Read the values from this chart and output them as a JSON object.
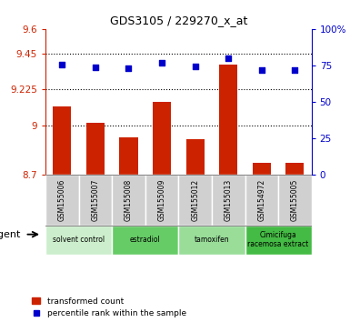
{
  "title": "GDS3105 / 229270_x_at",
  "samples": [
    "GSM155006",
    "GSM155007",
    "GSM155008",
    "GSM155009",
    "GSM155012",
    "GSM155013",
    "GSM154972",
    "GSM155005"
  ],
  "bar_values": [
    9.12,
    9.02,
    8.93,
    9.15,
    8.92,
    9.38,
    8.77,
    8.77
  ],
  "percentile_values": [
    75.5,
    73.5,
    73.0,
    76.5,
    74.0,
    80.0,
    71.5,
    72.0
  ],
  "bar_color": "#cc2200",
  "dot_color": "#0000cc",
  "ylim_left": [
    8.7,
    9.6
  ],
  "ylim_right": [
    0,
    100
  ],
  "yticks_left": [
    8.7,
    9.0,
    9.225,
    9.45,
    9.6
  ],
  "ytick_labels_left": [
    "8.7",
    "9",
    "9.225",
    "9.45",
    "9.6"
  ],
  "yticks_right": [
    0,
    25,
    50,
    75,
    100
  ],
  "ytick_labels_right": [
    "0",
    "25",
    "50",
    "75",
    "100%"
  ],
  "hlines": [
    9.0,
    9.225,
    9.45
  ],
  "groups": [
    {
      "label": "solvent control",
      "start": 0,
      "end": 2,
      "color": "#cceecc"
    },
    {
      "label": "estradiol",
      "start": 2,
      "end": 4,
      "color": "#66cc66"
    },
    {
      "label": "tamoxifen",
      "start": 4,
      "end": 6,
      "color": "#99dd99"
    },
    {
      "label": "Cimicifuga\nracemosa extract",
      "start": 6,
      "end": 8,
      "color": "#44bb44"
    }
  ],
  "agent_label": "agent",
  "legend_bar_label": "transformed count",
  "legend_dot_label": "percentile rank within the sample"
}
